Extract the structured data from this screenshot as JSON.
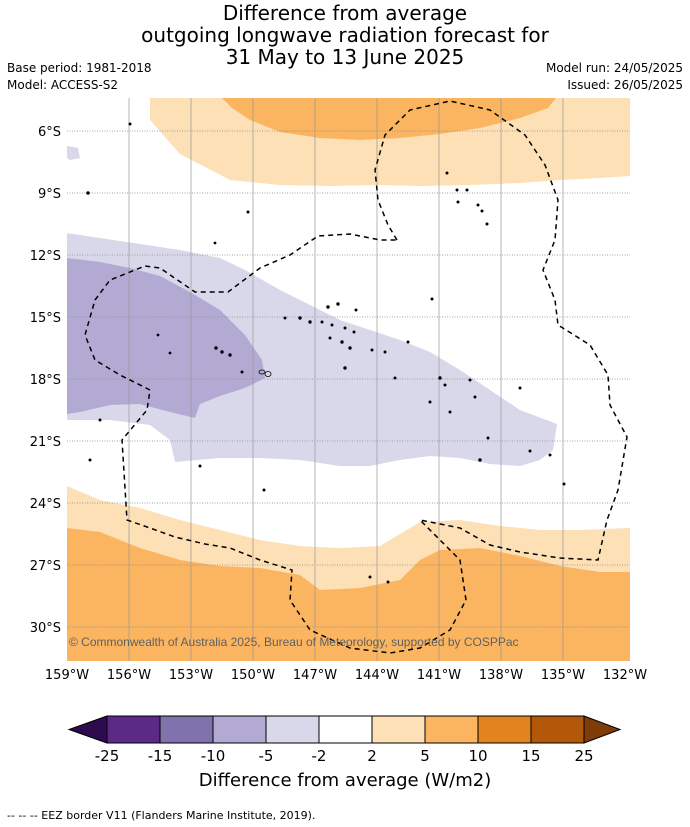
{
  "title": {
    "line1": "Difference from average",
    "line2": "outgoing longwave radiation forecast for",
    "line3": "31 May to 13 June 2025"
  },
  "meta": {
    "base_period": "Base period: 1981-2018",
    "model": "Model: ACCESS-S2",
    "model_run": "Model run: 24/05/2025",
    "issued": "Issued: 26/05/2025"
  },
  "map": {
    "lat_labels": [
      "6°S",
      "9°S",
      "12°S",
      "15°S",
      "18°S",
      "21°S",
      "24°S",
      "27°S",
      "30°S"
    ],
    "lon_labels": [
      "159°W",
      "156°W",
      "153°W",
      "150°W",
      "147°W",
      "144°W",
      "141°W",
      "138°W",
      "135°W",
      "132°W"
    ],
    "copyright": "© Commonwealth of Australia 2025, Bureau of Meteorology, supported by COSPPac"
  },
  "colorbar": {
    "ticks": [
      "-25",
      "-15",
      "-10",
      "-5",
      "-2",
      "2",
      "5",
      "10",
      "15",
      "25"
    ],
    "colors": [
      "#2d0b4e",
      "#5b2a86",
      "#8072ac",
      "#b2aad3",
      "#d8d8ea",
      "#ffffff",
      "#fde0b5",
      "#fbb561",
      "#e1841f",
      "#b35808",
      "#7f3b08"
    ],
    "title": "Difference from average (W/m2)"
  },
  "footnote": "--  --  -- EEZ border V11 (Flanders Marine Institute, 2019)."
}
